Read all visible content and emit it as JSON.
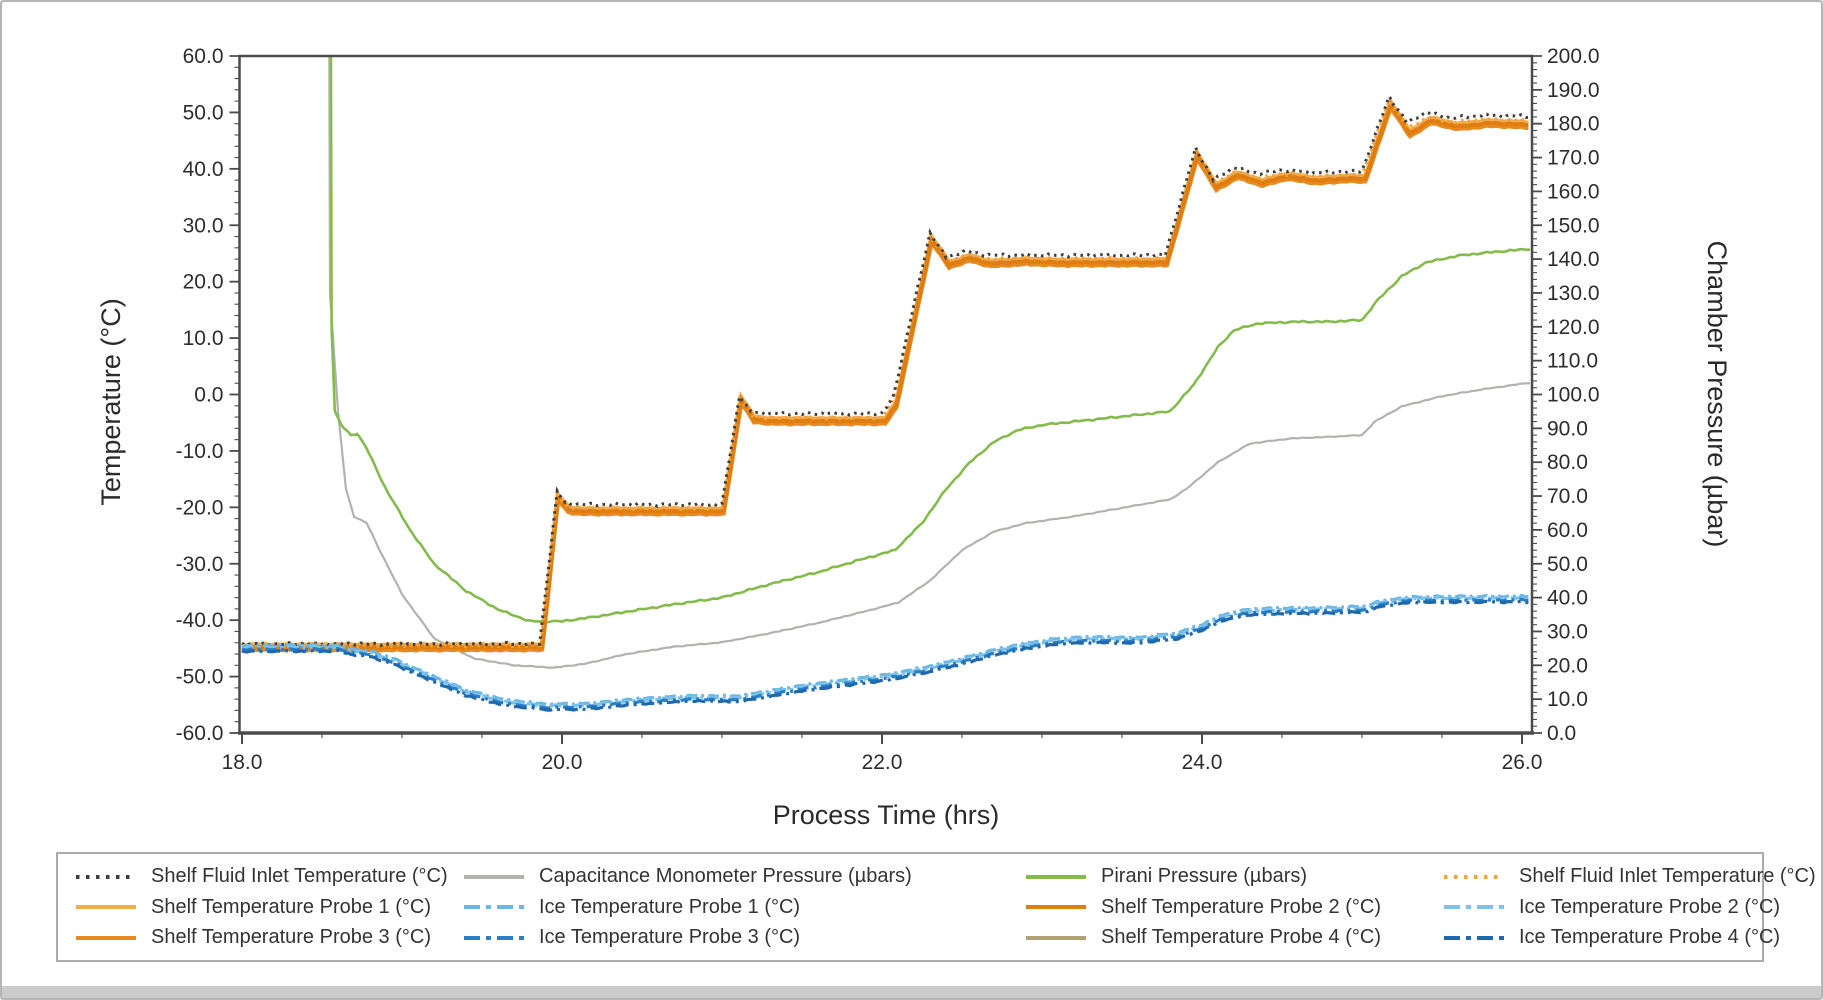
{
  "window": {
    "bg": "#ffffff",
    "border_color": "#b5b5b5",
    "bottom_bar_color": "#cbcbcb"
  },
  "axes": {
    "x": {
      "title": "Process Time (hrs)",
      "min": 18.0,
      "max": 26.0625,
      "label_ticks": [
        18.0,
        20.0,
        22.0,
        24.0,
        26.0
      ],
      "minor_step": 0.5,
      "decimals": 1
    },
    "y_temp": {
      "title": "Temperature (°C)",
      "min": -60.0,
      "max": 60.0,
      "label_step": 10,
      "minor_step": 2,
      "decimals": 1
    },
    "y_press": {
      "title": "Chamber Pressure (µbar)",
      "min": 0.0,
      "max": 200.0,
      "label_step": 10,
      "minor_step": 2,
      "decimals": 1
    }
  },
  "chart_data": {
    "type": "line",
    "x_unit": "hours",
    "left_axis_unit": "°C",
    "right_axis_unit": "µbar",
    "bases": {
      "shelf": [
        [
          18.0,
          -44.8
        ],
        [
          19.875,
          -44.8
        ],
        [
          19.975,
          -18.2
        ],
        [
          20.04,
          -20.4
        ],
        [
          20.12,
          -20.7
        ],
        [
          21.01,
          -20.7
        ],
        [
          21.12,
          -0.9
        ],
        [
          21.2,
          -4.4
        ],
        [
          21.32,
          -4.7
        ],
        [
          22.02,
          -4.7
        ],
        [
          22.09,
          -1.8
        ],
        [
          22.31,
          27.5
        ],
        [
          22.42,
          23.0
        ],
        [
          22.55,
          24.2
        ],
        [
          22.68,
          23.2
        ],
        [
          22.9,
          23.6
        ],
        [
          23.1,
          23.4
        ],
        [
          23.78,
          23.4
        ],
        [
          23.97,
          42.4
        ],
        [
          24.09,
          36.7
        ],
        [
          24.22,
          38.9
        ],
        [
          24.38,
          37.5
        ],
        [
          24.53,
          38.7
        ],
        [
          24.72,
          37.9
        ],
        [
          24.9,
          38.3
        ],
        [
          25.02,
          38.2
        ],
        [
          25.18,
          51.4
        ],
        [
          25.3,
          46.2
        ],
        [
          25.43,
          48.6
        ],
        [
          25.6,
          47.5
        ],
        [
          25.8,
          48.1
        ],
        [
          26.04,
          47.8
        ]
      ],
      "ice": [
        [
          18.0,
          -44.95
        ],
        [
          18.6,
          -44.95
        ],
        [
          18.68,
          -45.5
        ],
        [
          18.8,
          -45.9
        ],
        [
          18.95,
          -47.3
        ],
        [
          19.15,
          -49.8
        ],
        [
          19.4,
          -52.8
        ],
        [
          19.65,
          -54.6
        ],
        [
          19.9,
          -55.3
        ],
        [
          20.15,
          -55.2
        ],
        [
          20.45,
          -54.4
        ],
        [
          20.8,
          -53.8
        ],
        [
          21.1,
          -53.9
        ],
        [
          21.25,
          -53.2
        ],
        [
          21.5,
          -52.0
        ],
        [
          21.8,
          -50.9
        ],
        [
          22.05,
          -50.0
        ],
        [
          22.3,
          -48.6
        ],
        [
          22.5,
          -47.2
        ],
        [
          22.7,
          -45.7
        ],
        [
          22.9,
          -44.5
        ],
        [
          23.1,
          -43.7
        ],
        [
          23.3,
          -43.4
        ],
        [
          23.6,
          -43.5
        ],
        [
          23.85,
          -42.7
        ],
        [
          24.0,
          -41.2
        ],
        [
          24.15,
          -39.3
        ],
        [
          24.3,
          -38.5
        ],
        [
          24.5,
          -38.3
        ],
        [
          24.8,
          -38.2
        ],
        [
          25.02,
          -38.0
        ],
        [
          25.12,
          -37.0
        ],
        [
          25.3,
          -36.3
        ],
        [
          25.6,
          -36.25
        ],
        [
          26.04,
          -36.2
        ]
      ]
    },
    "series": [
      {
        "name": "capacitance-monometer-pressure",
        "axis": "press",
        "color": "#b2b2ae",
        "width": 2.2,
        "noise": 0.5,
        "points": [
          [
            18.545,
            212
          ],
          [
            18.55,
            130
          ],
          [
            18.6,
            95
          ],
          [
            18.65,
            72
          ],
          [
            18.7,
            64
          ],
          [
            18.78,
            62
          ],
          [
            18.85,
            55
          ],
          [
            19.0,
            41
          ],
          [
            19.2,
            28
          ],
          [
            19.45,
            22
          ],
          [
            19.7,
            20
          ],
          [
            19.95,
            19.3
          ],
          [
            20.15,
            20.5
          ],
          [
            20.4,
            23.3
          ],
          [
            20.7,
            25.5
          ],
          [
            21.0,
            26.8
          ],
          [
            21.3,
            29.5
          ],
          [
            21.6,
            32.5
          ],
          [
            21.9,
            36.0
          ],
          [
            22.1,
            38.5
          ],
          [
            22.3,
            45.0
          ],
          [
            22.5,
            54.0
          ],
          [
            22.7,
            59.5
          ],
          [
            22.9,
            62.0
          ],
          [
            23.2,
            64.0
          ],
          [
            23.5,
            66.5
          ],
          [
            23.8,
            69.0
          ],
          [
            23.9,
            72.0
          ],
          [
            24.1,
            80.0
          ],
          [
            24.3,
            85.5
          ],
          [
            24.55,
            87.0
          ],
          [
            24.8,
            87.5
          ],
          [
            25.0,
            88.0
          ],
          [
            25.08,
            92.0
          ],
          [
            25.25,
            96.5
          ],
          [
            25.5,
            99.5
          ],
          [
            25.75,
            101.5
          ],
          [
            26.05,
            103.5
          ]
        ]
      },
      {
        "name": "pirani-pressure",
        "axis": "press",
        "color": "#85bb4c",
        "width": 2.6,
        "noise": 1.0,
        "points": [
          [
            18.555,
            215
          ],
          [
            18.56,
            120
          ],
          [
            18.58,
            95
          ],
          [
            18.62,
            91
          ],
          [
            18.68,
            88
          ],
          [
            18.72,
            88.5
          ],
          [
            18.78,
            84
          ],
          [
            18.9,
            72
          ],
          [
            19.05,
            60
          ],
          [
            19.2,
            50
          ],
          [
            19.4,
            42
          ],
          [
            19.6,
            36.5
          ],
          [
            19.8,
            33
          ],
          [
            20.0,
            33
          ],
          [
            20.2,
            34.3
          ],
          [
            20.4,
            35.8
          ],
          [
            20.7,
            38
          ],
          [
            21.0,
            40
          ],
          [
            21.3,
            44
          ],
          [
            21.6,
            47.5
          ],
          [
            21.85,
            51
          ],
          [
            22.08,
            54
          ],
          [
            22.25,
            62
          ],
          [
            22.4,
            72
          ],
          [
            22.55,
            80
          ],
          [
            22.7,
            86
          ],
          [
            22.85,
            89.5
          ],
          [
            23.0,
            91
          ],
          [
            23.2,
            92
          ],
          [
            23.4,
            93
          ],
          [
            23.6,
            94
          ],
          [
            23.8,
            95
          ],
          [
            23.95,
            103
          ],
          [
            24.1,
            114
          ],
          [
            24.2,
            119
          ],
          [
            24.35,
            121
          ],
          [
            24.6,
            121.5
          ],
          [
            24.8,
            121.5
          ],
          [
            25.0,
            122
          ],
          [
            25.1,
            128
          ],
          [
            25.25,
            135
          ],
          [
            25.4,
            139
          ],
          [
            25.6,
            141
          ],
          [
            25.8,
            142
          ],
          [
            26.05,
            143
          ]
        ]
      },
      {
        "name": "shelf-temperature-probe-1",
        "axis": "temp",
        "color": "#f3ab4e",
        "width": 4.5,
        "noise": 0.8,
        "base": "shelf",
        "offset": 0.45
      },
      {
        "name": "shelf-temperature-probe-3",
        "axis": "temp",
        "color": "#e88a20",
        "width": 4.5,
        "noise": 0.8,
        "base": "shelf",
        "offset": -0.45
      },
      {
        "name": "shelf-temperature-probe-4",
        "axis": "temp",
        "color": "#b3a176",
        "width": 2.4,
        "noise": 0.7,
        "base": "shelf",
        "offset": 0.15
      },
      {
        "name": "shelf-temperature-probe-2",
        "axis": "temp",
        "color": "#e07d10",
        "width": 4.0,
        "noise": 0.8,
        "base": "shelf",
        "offset": 0.0
      },
      {
        "name": "shelf-fluid-inlet-temperature-orange",
        "axis": "temp",
        "color": "#f2a33c",
        "width": 3.0,
        "dash": "2.5 4.5",
        "noise": 1.4,
        "points": [
          [
            18.0,
            -44.55
          ],
          [
            19.865,
            -44.55
          ],
          [
            19.97,
            -17.8
          ],
          [
            20.03,
            -19.9
          ],
          [
            20.1,
            -20.2
          ],
          [
            21.0,
            -20.2
          ],
          [
            21.11,
            -0.6
          ],
          [
            21.19,
            -3.9
          ],
          [
            21.3,
            -4.2
          ],
          [
            22.0,
            -4.2
          ],
          [
            22.07,
            -1.2
          ],
          [
            22.3,
            28.0
          ],
          [
            22.41,
            23.7
          ],
          [
            22.53,
            24.8
          ],
          [
            22.66,
            24.1
          ],
          [
            23.77,
            24.1
          ],
          [
            23.96,
            43.0
          ],
          [
            24.08,
            37.3
          ],
          [
            24.2,
            39.5
          ],
          [
            24.36,
            38.5
          ],
          [
            24.5,
            39.1
          ],
          [
            24.7,
            38.7
          ],
          [
            25.0,
            38.9
          ],
          [
            25.17,
            52.1
          ],
          [
            25.29,
            47.2
          ],
          [
            25.41,
            49.2
          ],
          [
            25.56,
            48.2
          ],
          [
            25.76,
            48.8
          ],
          [
            26.04,
            48.6
          ]
        ]
      },
      {
        "name": "shelf-fluid-inlet-temperature",
        "axis": "temp",
        "color": "#3d3d3d",
        "width": 3.0,
        "dash": "2.5 4.5",
        "noise": 1.8,
        "points": [
          [
            18.0,
            -44.2
          ],
          [
            19.86,
            -44.2
          ],
          [
            19.97,
            -17.2
          ],
          [
            20.02,
            -19.2
          ],
          [
            20.1,
            -19.5
          ],
          [
            21.0,
            -19.5
          ],
          [
            21.11,
            -0.2
          ],
          [
            21.18,
            -3.1
          ],
          [
            21.3,
            -3.4
          ],
          [
            22.0,
            -3.4
          ],
          [
            22.07,
            -0.5
          ],
          [
            22.3,
            28.6
          ],
          [
            22.4,
            24.3
          ],
          [
            22.52,
            25.4
          ],
          [
            22.65,
            24.7
          ],
          [
            23.77,
            24.7
          ],
          [
            23.96,
            43.6
          ],
          [
            24.07,
            38.0
          ],
          [
            24.2,
            40.2
          ],
          [
            24.35,
            39.2
          ],
          [
            24.5,
            39.8
          ],
          [
            24.7,
            39.3
          ],
          [
            25.0,
            39.6
          ],
          [
            25.17,
            52.8
          ],
          [
            25.28,
            48.2
          ],
          [
            25.4,
            50.0
          ],
          [
            25.55,
            49.0
          ],
          [
            25.75,
            49.5
          ],
          [
            26.04,
            49.3
          ]
        ]
      },
      {
        "name": "ice-temperature-probe-1",
        "axis": "temp",
        "color": "#69b7e5",
        "width": 3.2,
        "dash": "11 4 3 4",
        "noise": 0.9,
        "base": "ice",
        "offset": 0.45
      },
      {
        "name": "ice-temperature-probe-2",
        "axis": "temp",
        "color": "#7cc1ea",
        "width": 3.2,
        "dash": "12 4 3 4",
        "noise": 0.9,
        "base": "ice",
        "offset": 0.15
      },
      {
        "name": "ice-temperature-probe-3",
        "axis": "temp",
        "color": "#2a7fc9",
        "width": 3.2,
        "dash": "11 5 3 5",
        "noise": 0.9,
        "base": "ice",
        "offset": -0.2
      },
      {
        "name": "ice-temperature-probe-4",
        "axis": "temp",
        "color": "#1e68ad",
        "width": 3.2,
        "dash": "13 5 3 5",
        "noise": 0.9,
        "base": "ice",
        "offset": -0.55
      }
    ]
  },
  "legend": {
    "items": [
      {
        "label": "Shelf Fluid Inlet Temperature (°C)",
        "color": "#3d3d3d",
        "style": "dotted"
      },
      {
        "label": "Capacitance Monometer Pressure (µbars)",
        "color": "#b2b2ae",
        "style": "solid"
      },
      {
        "label": "Pirani Pressure (µbars)",
        "color": "#85bb4c",
        "style": "solid"
      },
      {
        "label": "Shelf Fluid Inlet Temperature (°C)",
        "color": "#f2a33c",
        "style": "dotted"
      },
      {
        "label": "Shelf Temperature Probe 1 (°C)",
        "color": "#f3ab4e",
        "style": "solid"
      },
      {
        "label": "Ice Temperature Probe 1 (°C)",
        "color": "#69b7e5",
        "style": "dashdot"
      },
      {
        "label": "Shelf Temperature Probe 2 (°C)",
        "color": "#e07d10",
        "style": "solid"
      },
      {
        "label": "Ice Temperature Probe 2 (°C)",
        "color": "#7cc1ea",
        "style": "dashdot"
      },
      {
        "label": "Shelf Temperature Probe 3 (°C)",
        "color": "#e88a20",
        "style": "solid"
      },
      {
        "label": "Ice Temperature Probe 3 (°C)",
        "color": "#2a7fc9",
        "style": "dashdot"
      },
      {
        "label": "Shelf Temperature Probe 4 (°C)",
        "color": "#b3a176",
        "style": "solid"
      },
      {
        "label": "Ice Temperature Probe 4 (°C)",
        "color": "#1e68ad",
        "style": "dashdot"
      }
    ]
  }
}
